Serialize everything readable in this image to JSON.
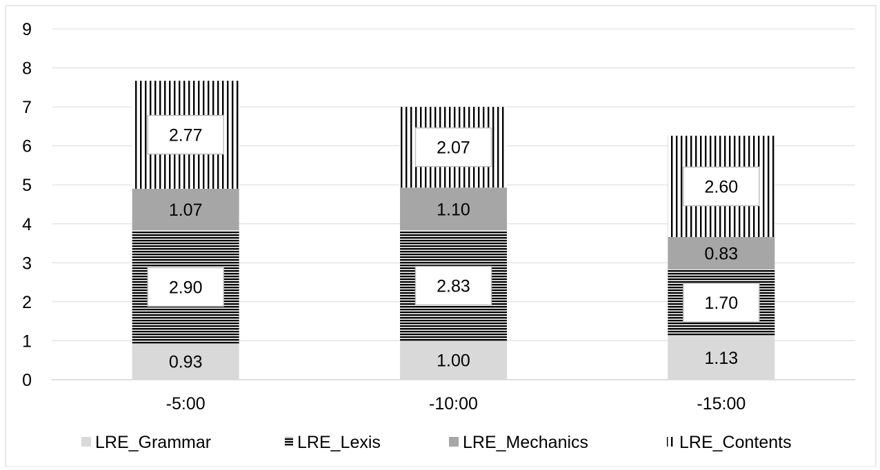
{
  "chart_data": {
    "type": "bar",
    "stacked": true,
    "categories": [
      "-5:00",
      "-10:00",
      "-15:00"
    ],
    "series": [
      {
        "name": "LRE_Grammar",
        "values": [
          0.93,
          1.0,
          1.13
        ],
        "pattern": "solid-light",
        "color": "#d9d9d9",
        "label_boxed": false
      },
      {
        "name": "LRE_Lexis",
        "values": [
          2.9,
          2.83,
          1.7
        ],
        "pattern": "horizontal",
        "color": "#000000",
        "label_boxed": true
      },
      {
        "name": "LRE_Mechanics",
        "values": [
          1.07,
          1.1,
          0.83
        ],
        "pattern": "solid-dark",
        "color": "#a6a6a6",
        "label_boxed": false
      },
      {
        "name": "LRE_Contents",
        "values": [
          2.77,
          2.07,
          2.6
        ],
        "pattern": "vertical",
        "color": "#000000",
        "label_boxed": true
      }
    ],
    "data_labels": [
      [
        "0.93",
        "1.00",
        "1.13"
      ],
      [
        "2.90",
        "2.83",
        "1.70"
      ],
      [
        "1.07",
        "1.10",
        "0.83"
      ],
      [
        "2.77",
        "2.07",
        "2.60"
      ]
    ],
    "y_ticks": [
      "0",
      "1",
      "2",
      "3",
      "4",
      "5",
      "6",
      "7",
      "8",
      "9"
    ],
    "ylim": [
      0,
      9
    ],
    "grid": true,
    "legend_position": "bottom",
    "title": "",
    "xlabel": "",
    "ylabel": ""
  }
}
